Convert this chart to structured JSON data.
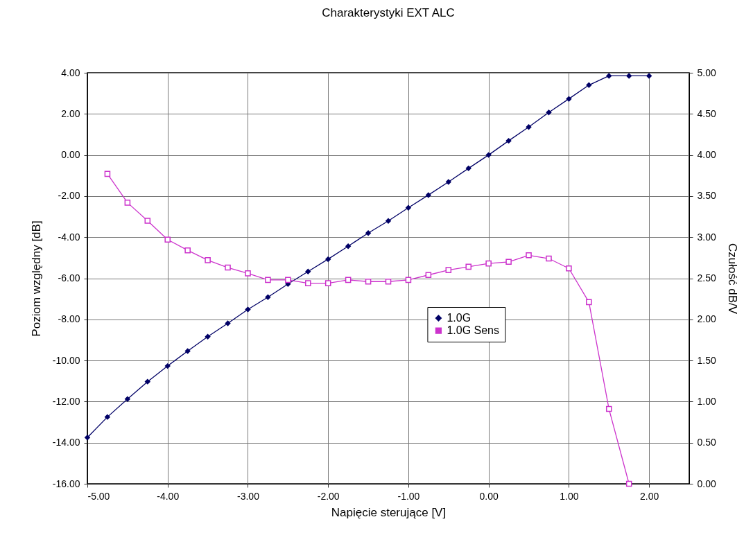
{
  "chart_data": {
    "type": "line",
    "title": "Charakterystyki EXT ALC",
    "xlabel": "Napięcie sterujące [V]",
    "ylabel": "Poziom względny [dB]",
    "y2label": "Czułość dB/V",
    "x": [
      -5,
      -4.75,
      -4.5,
      -4.25,
      -4,
      -3.75,
      -3.5,
      -3.25,
      -3,
      -2.75,
      -2.5,
      -2.25,
      -2,
      -1.75,
      -1.5,
      -1.25,
      -1,
      -0.75,
      -0.5,
      -0.25,
      0,
      0.25,
      0.5,
      0.75,
      1,
      1.25,
      1.5,
      1.75,
      2
    ],
    "series": [
      {
        "name": "1.0G",
        "color": "#000066",
        "marker": "diamond",
        "values": [
          -13.75,
          -12.75,
          -11.88,
          -11.03,
          -10.27,
          -9.54,
          -8.84,
          -8.19,
          -7.52,
          -6.92,
          -6.28,
          -5.67,
          -5.07,
          -4.44,
          -3.8,
          -3.21,
          -2.57,
          -1.95,
          -1.31,
          -0.65,
          0,
          0.69,
          1.36,
          2.07,
          2.73,
          3.4,
          3.85,
          3.85,
          3.85
        ]
      },
      {
        "name": "1.0G Sens",
        "color": "#cc33cc",
        "marker": "square",
        "axis": "y2",
        "x": [
          -4.75,
          -4.5,
          -4.25,
          -4,
          -3.75,
          -3.5,
          -3.25,
          -3,
          -2.75,
          -2.5,
          -2.25,
          -2,
          -1.75,
          -1.5,
          -1.25,
          -1,
          -0.75,
          -0.5,
          -0.25,
          0,
          0.25,
          0.5,
          0.75,
          1,
          1.25,
          1.5,
          1.75
        ],
        "values": [
          3.77,
          3.42,
          3.2,
          2.97,
          2.84,
          2.72,
          2.63,
          2.56,
          2.48,
          2.48,
          2.44,
          2.44,
          2.48,
          2.46,
          2.46,
          2.48,
          2.54,
          2.6,
          2.64,
          2.68,
          2.7,
          2.78,
          2.74,
          2.62,
          2.21,
          0.91,
          0
        ]
      }
    ],
    "xlim": [
      -5,
      2.5
    ],
    "xticks": [
      {
        "value": -5,
        "label": "-5.00"
      },
      {
        "value": -4,
        "label": "-4.00"
      },
      {
        "value": -3,
        "label": "-3.00"
      },
      {
        "value": -2,
        "label": "-2.00"
      },
      {
        "value": -1,
        "label": "-1.00"
      },
      {
        "value": 0,
        "label": "0.00"
      },
      {
        "value": 1,
        "label": "1.00"
      },
      {
        "value": 2,
        "label": "2.00"
      }
    ],
    "ylim": [
      -16,
      4
    ],
    "yticks": [
      {
        "value": -16,
        "label": "-16.00"
      },
      {
        "value": -14,
        "label": "-14.00"
      },
      {
        "value": -12,
        "label": "-12.00"
      },
      {
        "value": -10,
        "label": "-10.00"
      },
      {
        "value": -8,
        "label": "-8.00"
      },
      {
        "value": -6,
        "label": "-6.00"
      },
      {
        "value": -4,
        "label": "-4.00"
      },
      {
        "value": -2,
        "label": "-2.00"
      },
      {
        "value": 0,
        "label": "0.00"
      },
      {
        "value": 2,
        "label": "2.00"
      },
      {
        "value": 4,
        "label": "4.00"
      }
    ],
    "y2lim": [
      0,
      5
    ],
    "y2ticks": [
      {
        "value": 0,
        "label": "0.00"
      },
      {
        "value": 0.5,
        "label": "0.50"
      },
      {
        "value": 1,
        "label": "1.00"
      },
      {
        "value": 1.5,
        "label": "1.50"
      },
      {
        "value": 2,
        "label": "2.00"
      },
      {
        "value": 2.5,
        "label": "2.50"
      },
      {
        "value": 3,
        "label": "3.00"
      },
      {
        "value": 3.5,
        "label": "3.50"
      },
      {
        "value": 4,
        "label": "4.00"
      },
      {
        "value": 4.5,
        "label": "4.50"
      },
      {
        "value": 5,
        "label": "5.00"
      }
    ],
    "grid": true,
    "legend": "center",
    "line_style": "solid"
  }
}
